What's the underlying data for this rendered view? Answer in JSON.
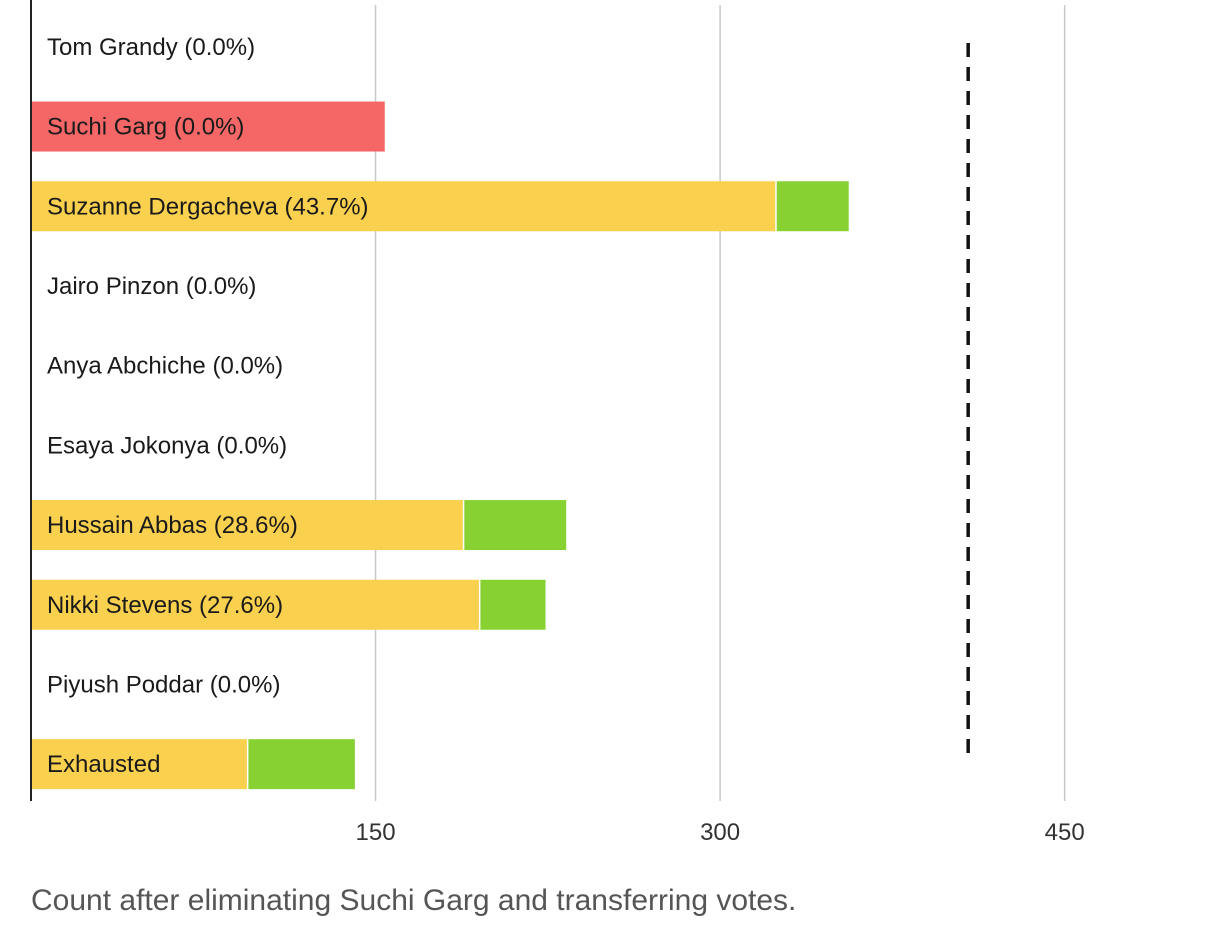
{
  "caption": "Count after eliminating Suchi Garg and transferring votes.",
  "colors": {
    "existing": "#fad04f",
    "transferred": "#87d133",
    "eliminated": "#f56767",
    "grid": "#c8c8c8",
    "axis": "#222222",
    "threshold": "#111111"
  },
  "chart_data": {
    "type": "bar",
    "orientation": "horizontal",
    "stacked": true,
    "xlim": [
      0,
      495
    ],
    "xticks": [
      150,
      300,
      450
    ],
    "xtick_labels": [
      "150",
      "300",
      "450"
    ],
    "grid": true,
    "threshold": 408,
    "threshold_style": "dashed",
    "categories": [
      "Tom Grandy (0.0%)",
      "Suchi Garg (0.0%)",
      "Suzanne Dergacheva (43.7%)",
      "Jairo Pinzon (0.0%)",
      "Anya Abchiche (0.0%)",
      "Esaya Jokonya (0.0%)",
      "Hussain Abbas (28.6%)",
      "Nikki Stevens (27.6%)",
      "Piyush Poddar (0.0%)",
      "Exhausted"
    ],
    "series": [
      {
        "values": [
          0,
          154,
          324,
          0,
          0,
          0,
          188,
          195,
          0,
          94
        ]
      },
      {
        "values": [
          0,
          0,
          32,
          0,
          0,
          0,
          45,
          29,
          0,
          47
        ]
      }
    ],
    "eliminated_index": 1
  }
}
